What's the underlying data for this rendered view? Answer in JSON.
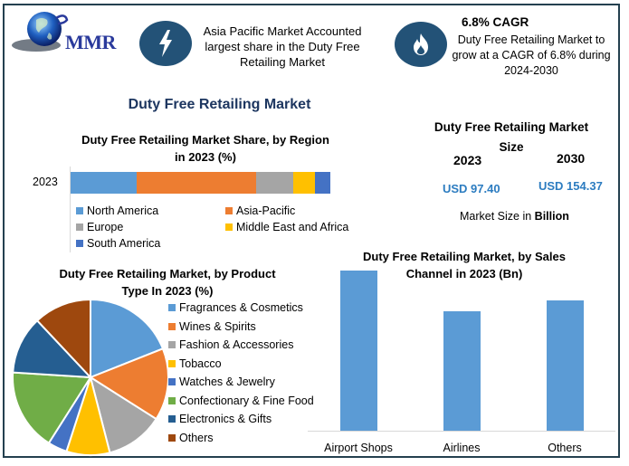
{
  "logo": {
    "text": "MMR",
    "icon": "globe-icon"
  },
  "highlights": [
    {
      "icon": "lightning-icon",
      "text": "Asia Pacific Market Accounted largest share in the Duty Free Retailing Market"
    },
    {
      "icon": "flame-icon",
      "title": "6.8% CAGR",
      "text": "Duty Free Retailing Market to grow at a CAGR of 6.8% during 2024-2030"
    }
  ],
  "main_title": "Duty Free Retailing Market",
  "market_size": {
    "title": "Duty Free Retailing Market Size",
    "year1": "2023",
    "value1": "USD 97.40",
    "year2": "2030",
    "value2": "USD 154.37",
    "note_prefix": "Market Size in ",
    "note_bold": "Billion"
  },
  "colors": {
    "north_america": "#5b9bd5",
    "asia_pacific": "#ed7d31",
    "europe": "#a5a5a5",
    "mea": "#ffc000",
    "south_america": "#4472c4",
    "electronics": "#255e91",
    "confectionary": "#70ad47",
    "others": "#9e480e",
    "border": "#24404f",
    "title_blue": "#1d3660",
    "usd": "#2c7cc0"
  },
  "chart_data": [
    {
      "type": "bar",
      "orientation": "horizontal-stacked",
      "title": "Duty Free Retailing Market Share, by Region in 2023 (%)",
      "categories": [
        "2023"
      ],
      "series": [
        {
          "name": "North America",
          "values": [
            25.4
          ]
        },
        {
          "name": "Asia-Pacific",
          "values": [
            46.0
          ]
        },
        {
          "name": "Europe",
          "values": [
            14.3
          ]
        },
        {
          "name": "Middle East and Africa",
          "values": [
            8.4
          ]
        },
        {
          "name": "South America",
          "values": [
            5.9
          ]
        }
      ],
      "legend_position": "bottom"
    },
    {
      "type": "pie",
      "title": "Duty Free Retailing Market, by Product Type In 2023 (%)",
      "categories": [
        "Fragrances & Cosmetics",
        "Wines & Spirits",
        "Fashion & Accessories",
        "Tobacco",
        "Watches & Jewelry",
        "Confectionary & Fine Food",
        "Electronics & Gifts",
        "Others"
      ],
      "values": [
        19,
        15,
        12,
        9,
        4,
        17,
        12,
        12
      ],
      "legend_position": "right"
    },
    {
      "type": "bar",
      "title": "Duty Free Retailing Market, by Sales Channel in 2023 (Bn)",
      "categories": [
        "Airport Shops",
        "Airlines",
        "Others"
      ],
      "values": [
        177,
        132,
        144
      ],
      "ylabel": "",
      "xlabel": "",
      "grid": false
    }
  ],
  "region_chart": {
    "title_l1": "Duty Free Retailing Market Share, by Region",
    "title_l2": "in 2023 (%)",
    "ylabel": "2023",
    "legend": [
      "North America",
      "Asia-Pacific",
      "Europe",
      "Middle East and Africa",
      "South America"
    ]
  },
  "product_chart": {
    "title_l1": "Duty Free Retailing Market, by Product",
    "title_l2": "Type In 2023 (%)",
    "legend": [
      "Fragrances & Cosmetics",
      "Wines & Spirits",
      "Fashion & Accessories",
      "Tobacco",
      "Watches & Jewelry",
      "Confectionary & Fine Food",
      "Electronics & Gifts",
      "Others"
    ]
  },
  "channel_chart": {
    "title_l1": "Duty Free Retailing Market, by Sales",
    "title_l2": "Channel in 2023 (Bn)",
    "labels": [
      "Airport Shops",
      "Airlines",
      "Others"
    ]
  }
}
